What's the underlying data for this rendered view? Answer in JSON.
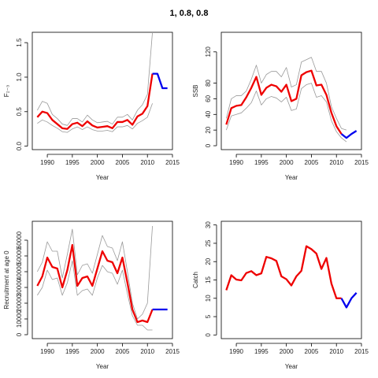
{
  "figure": {
    "title": "1, 0.8, 0.8"
  },
  "colors": {
    "estimate": "#ee0000",
    "projection": "#0000ee",
    "bounds": "#999999"
  },
  "chart_data": [
    {
      "type": "line",
      "title": "",
      "xlabel": "Year",
      "ylabel": "F₂₋₃",
      "xlim": [
        1987,
        2015
      ],
      "ylim": [
        -0.05,
        1.65
      ],
      "xticks": [
        1990,
        1995,
        2000,
        2005,
        2010,
        2015
      ],
      "yticks": [
        0.0,
        0.5,
        1.0,
        1.5
      ],
      "ytick_labels": [
        "0.0",
        "0.5",
        "1.0",
        "1.5"
      ],
      "series": [
        {
          "role": "bounds",
          "x": [
            1988,
            1989,
            1990,
            1991,
            1992,
            1993,
            1994,
            1995,
            1996,
            1997,
            1998,
            1999,
            2000,
            2001,
            2002,
            2003,
            2004,
            2005,
            2006,
            2007,
            2008,
            2009,
            2010,
            2011
          ],
          "values": [
            0.52,
            0.65,
            0.62,
            0.46,
            0.4,
            0.32,
            0.3,
            0.4,
            0.4,
            0.35,
            0.45,
            0.38,
            0.34,
            0.35,
            0.36,
            0.32,
            0.42,
            0.42,
            0.46,
            0.38,
            0.52,
            0.6,
            0.75,
            1.65
          ]
        },
        {
          "role": "bounds",
          "x": [
            1988,
            1989,
            1990,
            1991,
            1992,
            1993,
            1994,
            1995,
            1996,
            1997,
            1998,
            1999,
            2000,
            2001,
            2002,
            2003,
            2004,
            2005,
            2006,
            2007,
            2008,
            2009,
            2010,
            2011
          ],
          "values": [
            0.33,
            0.38,
            0.35,
            0.3,
            0.26,
            0.21,
            0.2,
            0.25,
            0.28,
            0.24,
            0.28,
            0.24,
            0.22,
            0.22,
            0.23,
            0.21,
            0.28,
            0.28,
            0.3,
            0.25,
            0.33,
            0.37,
            0.42,
            0.62
          ]
        },
        {
          "role": "estimate",
          "x": [
            1988,
            1989,
            1990,
            1991,
            1992,
            1993,
            1994,
            1995,
            1996,
            1997,
            1998,
            1999,
            2000,
            2001,
            2002,
            2003,
            2004,
            2005,
            2006,
            2007,
            2008,
            2009,
            2010,
            2011
          ],
          "values": [
            0.42,
            0.5,
            0.48,
            0.38,
            0.32,
            0.26,
            0.25,
            0.32,
            0.34,
            0.29,
            0.36,
            0.3,
            0.27,
            0.28,
            0.29,
            0.26,
            0.35,
            0.35,
            0.38,
            0.31,
            0.43,
            0.47,
            0.58,
            1.05
          ]
        },
        {
          "role": "projection",
          "x": [
            2011,
            2012,
            2013,
            2014
          ],
          "values": [
            1.05,
            1.05,
            0.84,
            0.84
          ]
        }
      ]
    },
    {
      "type": "line",
      "title": "",
      "xlabel": "Year",
      "ylabel": "SSB",
      "xlim": [
        1987,
        2015
      ],
      "ylim": [
        -5,
        145
      ],
      "xticks": [
        1990,
        1995,
        2000,
        2005,
        2010,
        2015
      ],
      "yticks": [
        0,
        20,
        40,
        60,
        80,
        120
      ],
      "ytick_labels": [
        "0",
        "20",
        "40",
        "60",
        "80",
        "120"
      ],
      "series": [
        {
          "role": "bounds",
          "x": [
            1988,
            1989,
            1990,
            1991,
            1992,
            1993,
            1994,
            1995,
            1996,
            1997,
            1998,
            1999,
            2000,
            2001,
            2002,
            2003,
            2004,
            2005,
            2006,
            2007,
            2008,
            2009,
            2010,
            2011,
            2012
          ],
          "values": [
            35,
            60,
            64,
            64,
            70,
            85,
            103,
            80,
            91,
            95,
            95,
            88,
            100,
            75,
            78,
            107,
            110,
            113,
            95,
            95,
            80,
            50,
            35,
            22,
            20
          ]
        },
        {
          "role": "bounds",
          "x": [
            1988,
            1989,
            1990,
            1991,
            1992,
            1993,
            1994,
            1995,
            1996,
            1997,
            1998,
            1999,
            2000,
            2001,
            2002,
            2003,
            2004,
            2005,
            2006,
            2007,
            2008,
            2009,
            2010,
            2011,
            2012
          ],
          "values": [
            20,
            38,
            40,
            42,
            48,
            55,
            70,
            52,
            60,
            63,
            61,
            56,
            62,
            45,
            47,
            73,
            78,
            80,
            62,
            64,
            56,
            32,
            18,
            10,
            5
          ]
        },
        {
          "role": "estimate",
          "x": [
            1988,
            1989,
            1990,
            1991,
            1992,
            1993,
            1994,
            1995,
            1996,
            1997,
            1998,
            1999,
            2000,
            2001,
            2002,
            2003,
            2004,
            2005,
            2006,
            2007,
            2008,
            2009,
            2010,
            2011
          ],
          "values": [
            27,
            48,
            51,
            52,
            62,
            74,
            88,
            65,
            74,
            78,
            76,
            69,
            78,
            57,
            60,
            90,
            94,
            96,
            77,
            78,
            65,
            42,
            25,
            15
          ]
        },
        {
          "role": "projection",
          "x": [
            2011,
            2012,
            2013,
            2014
          ],
          "values": [
            15,
            10,
            15,
            19
          ]
        }
      ]
    },
    {
      "type": "line",
      "title": "",
      "xlabel": "Year",
      "ylabel": "Recruitment at age 0",
      "xlim": [
        1987,
        2015
      ],
      "ylim": [
        -2500,
        72000
      ],
      "xticks": [
        1990,
        1995,
        2000,
        2005,
        2010,
        2015
      ],
      "yticks": [
        0,
        10000,
        20000,
        30000,
        40000,
        50000,
        60000
      ],
      "ytick_labels": [
        "0",
        "10000",
        "20000",
        "30000",
        "40000",
        "50000",
        "60000"
      ],
      "series": [
        {
          "role": "bounds",
          "x": [
            1988,
            1989,
            1990,
            1991,
            1992,
            1993,
            1994,
            1995,
            1996,
            1997,
            1998,
            1999,
            2000,
            2001,
            2002,
            2003,
            2004,
            2005,
            2006,
            2007,
            2008,
            2009,
            2010,
            2011
          ],
          "values": [
            40000,
            46000,
            59000,
            53000,
            53000,
            36000,
            51000,
            67000,
            38000,
            44000,
            45000,
            39000,
            51000,
            63000,
            56000,
            55000,
            47000,
            59000,
            40000,
            20000,
            10000,
            13000,
            20000,
            69000
          ]
        },
        {
          "role": "bounds",
          "x": [
            1988,
            1989,
            1990,
            1991,
            1992,
            1993,
            1994,
            1995,
            1996,
            1997,
            1998,
            1999,
            2000,
            2001,
            2002,
            2003,
            2004,
            2005,
            2006,
            2007,
            2008,
            2009,
            2010,
            2011
          ],
          "values": [
            25000,
            30000,
            41000,
            35000,
            36000,
            25000,
            33000,
            47000,
            25000,
            28000,
            29000,
            25000,
            36000,
            44000,
            40000,
            39000,
            32000,
            41000,
            26000,
            12000,
            6000,
            6000,
            3000,
            3000
          ]
        },
        {
          "role": "estimate",
          "x": [
            1988,
            1989,
            1990,
            1991,
            1992,
            1993,
            1994,
            1995,
            1996,
            1997,
            1998,
            1999,
            2000,
            2001,
            2002,
            2003,
            2004,
            2005,
            2006,
            2007,
            2008,
            2009,
            2010,
            2011
          ],
          "values": [
            31000,
            37000,
            49000,
            43000,
            42000,
            30000,
            41000,
            57000,
            31000,
            36000,
            37000,
            31000,
            42000,
            53000,
            47000,
            46000,
            39000,
            49000,
            33000,
            16000,
            8000,
            9000,
            8000,
            16000
          ]
        },
        {
          "role": "projection",
          "x": [
            2011,
            2012,
            2013,
            2014
          ],
          "values": [
            16000,
            16000,
            16000,
            16000
          ]
        }
      ]
    },
    {
      "type": "line",
      "title": "",
      "xlabel": "Year",
      "ylabel": "Catch",
      "xlim": [
        1987,
        2015
      ],
      "ylim": [
        -1,
        31
      ],
      "xticks": [
        1990,
        1995,
        2000,
        2005,
        2010,
        2015
      ],
      "yticks": [
        0,
        5,
        10,
        15,
        20,
        25,
        30
      ],
      "ytick_labels": [
        "0",
        "5",
        "10",
        "15",
        "20",
        "25",
        "30"
      ],
      "series": [
        {
          "role": "estimate",
          "x": [
            1988,
            1989,
            1990,
            1991,
            1992,
            1993,
            1994,
            1995,
            1996,
            1997,
            1998,
            1999,
            2000,
            2001,
            2002,
            2003,
            2004,
            2005,
            2006,
            2007,
            2008,
            2009,
            2010,
            2011
          ],
          "values": [
            12.2,
            16.3,
            15.1,
            14.9,
            16.9,
            17.4,
            16.3,
            16.8,
            21.3,
            20.9,
            20.2,
            16,
            15.2,
            13.5,
            16,
            17.5,
            24.2,
            23.4,
            22.2,
            18,
            21,
            14,
            10,
            10
          ]
        },
        {
          "role": "projection",
          "x": [
            2011,
            2012,
            2013,
            2014
          ],
          "values": [
            10,
            7.5,
            10,
            11.5
          ]
        }
      ]
    }
  ]
}
